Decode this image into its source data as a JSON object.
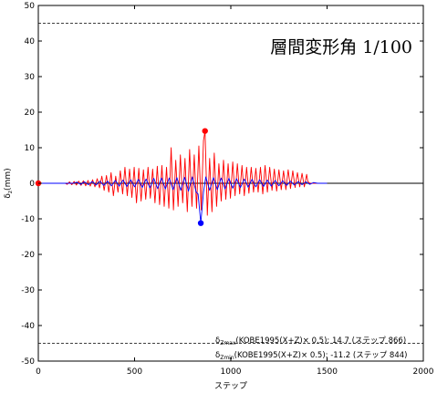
{
  "chart_data": {
    "type": "line",
    "title": "",
    "annotation": "層間変形角 1/100",
    "xlabel": "ステップ",
    "ylabel": "δz(mm)",
    "ylabel_main": "δ",
    "ylabel_sub": "z",
    "ylabel_unit": "(mm)",
    "xlim": [
      0,
      2000
    ],
    "ylim": [
      -50,
      50
    ],
    "xticks": [
      "0",
      "500",
      "1000",
      "1500",
      "2000"
    ],
    "yticks": [
      "50",
      "40",
      "30",
      "20",
      "10",
      "0",
      "-10",
      "-20",
      "-30",
      "-40",
      "-50"
    ],
    "threshold_lines": [
      45,
      -45
    ],
    "zero_line": 0,
    "series": [
      {
        "color": "#ff0000",
        "points": [
          [
            0,
            0
          ],
          [
            140,
            0
          ],
          [
            150,
            -0.3
          ],
          [
            162,
            0.4
          ],
          [
            174,
            -0.4
          ],
          [
            186,
            0.5
          ],
          [
            198,
            -0.5
          ],
          [
            210,
            0.6
          ],
          [
            222,
            -0.6
          ],
          [
            234,
            0.7
          ],
          [
            246,
            -0.7
          ],
          [
            258,
            0.8
          ],
          [
            270,
            -0.8
          ],
          [
            282,
            1.0
          ],
          [
            294,
            -1.0
          ],
          [
            306,
            1.3
          ],
          [
            318,
            -1.3
          ],
          [
            330,
            2.0
          ],
          [
            342,
            -2.0
          ],
          [
            354,
            2.2
          ],
          [
            366,
            -2.5
          ],
          [
            378,
            3.0
          ],
          [
            390,
            -3.5
          ],
          [
            402,
            2.0
          ],
          [
            414,
            -2.5
          ],
          [
            426,
            3.5
          ],
          [
            438,
            -3.0
          ],
          [
            450,
            4.5
          ],
          [
            462,
            -3.5
          ],
          [
            474,
            4.0
          ],
          [
            486,
            -4.0
          ],
          [
            498,
            4.5
          ],
          [
            510,
            -5.5
          ],
          [
            522,
            4.2
          ],
          [
            534,
            -5.0
          ],
          [
            546,
            3.8
          ],
          [
            558,
            -4.5
          ],
          [
            570,
            4.5
          ],
          [
            582,
            -4.2
          ],
          [
            594,
            4.0
          ],
          [
            606,
            -5.5
          ],
          [
            618,
            4.8
          ],
          [
            630,
            -6.0
          ],
          [
            642,
            5.0
          ],
          [
            654,
            -6.5
          ],
          [
            666,
            4.5
          ],
          [
            678,
            -7.0
          ],
          [
            690,
            10.0
          ],
          [
            702,
            -7.5
          ],
          [
            714,
            6.5
          ],
          [
            726,
            -6.5
          ],
          [
            738,
            8.0
          ],
          [
            750,
            -5.5
          ],
          [
            762,
            7.0
          ],
          [
            774,
            -8.0
          ],
          [
            786,
            9.5
          ],
          [
            798,
            -6.5
          ],
          [
            810,
            8.0
          ],
          [
            822,
            -7.0
          ],
          [
            834,
            10.5
          ],
          [
            846,
            -7.5
          ],
          [
            858,
            12.0
          ],
          [
            866,
            14.7
          ],
          [
            878,
            -9.0
          ],
          [
            890,
            7.0
          ],
          [
            902,
            -8.0
          ],
          [
            914,
            8.5
          ],
          [
            926,
            -6.5
          ],
          [
            938,
            5.5
          ],
          [
            950,
            -5.0
          ],
          [
            962,
            6.5
          ],
          [
            974,
            -4.5
          ],
          [
            986,
            5.5
          ],
          [
            998,
            -4.2
          ],
          [
            1010,
            6.0
          ],
          [
            1022,
            -3.5
          ],
          [
            1034,
            5.5
          ],
          [
            1046,
            -3.0
          ],
          [
            1058,
            5.0
          ],
          [
            1070,
            -3.5
          ],
          [
            1082,
            4.5
          ],
          [
            1094,
            -2.8
          ],
          [
            1106,
            4.5
          ],
          [
            1118,
            -2.5
          ],
          [
            1130,
            4.2
          ],
          [
            1142,
            -2.5
          ],
          [
            1154,
            4.5
          ],
          [
            1166,
            -3.0
          ],
          [
            1178,
            5.0
          ],
          [
            1190,
            -2.5
          ],
          [
            1202,
            4.5
          ],
          [
            1214,
            -2.0
          ],
          [
            1226,
            4.0
          ],
          [
            1238,
            -2.2
          ],
          [
            1250,
            3.8
          ],
          [
            1262,
            -1.8
          ],
          [
            1274,
            3.5
          ],
          [
            1286,
            -1.8
          ],
          [
            1298,
            3.8
          ],
          [
            1310,
            -1.5
          ],
          [
            1322,
            3.5
          ],
          [
            1334,
            -1.2
          ],
          [
            1346,
            3.0
          ],
          [
            1358,
            -1.0
          ],
          [
            1370,
            2.8
          ],
          [
            1382,
            -1.0
          ],
          [
            1394,
            2.5
          ],
          [
            1400,
            0.5
          ],
          [
            1410,
            0
          ],
          [
            1500,
            0
          ]
        ]
      },
      {
        "color": "#0000ff",
        "points": [
          [
            0,
            0
          ],
          [
            180,
            0
          ],
          [
            200,
            0.3
          ],
          [
            220,
            -0.3
          ],
          [
            240,
            0.4
          ],
          [
            260,
            -0.4
          ],
          [
            280,
            0.5
          ],
          [
            300,
            -0.5
          ],
          [
            320,
            0.6
          ],
          [
            340,
            -0.6
          ],
          [
            360,
            0.6
          ],
          [
            380,
            -0.7
          ],
          [
            400,
            0.8
          ],
          [
            420,
            -0.8
          ],
          [
            440,
            0.9
          ],
          [
            460,
            -0.9
          ],
          [
            480,
            1.0
          ],
          [
            500,
            -1.0
          ],
          [
            520,
            1.1
          ],
          [
            540,
            -1.2
          ],
          [
            560,
            1.2
          ],
          [
            580,
            -1.3
          ],
          [
            600,
            1.4
          ],
          [
            620,
            -1.5
          ],
          [
            640,
            1.5
          ],
          [
            660,
            -1.6
          ],
          [
            680,
            1.5
          ],
          [
            700,
            -1.8
          ],
          [
            720,
            1.6
          ],
          [
            740,
            -2.0
          ],
          [
            760,
            1.7
          ],
          [
            780,
            -2.2
          ],
          [
            800,
            1.8
          ],
          [
            820,
            -2.5
          ],
          [
            830,
            -3.0
          ],
          [
            844,
            -11.2
          ],
          [
            858,
            -2.5
          ],
          [
            870,
            1.8
          ],
          [
            890,
            -2.0
          ],
          [
            910,
            1.6
          ],
          [
            930,
            -1.8
          ],
          [
            950,
            1.5
          ],
          [
            970,
            -1.6
          ],
          [
            990,
            1.4
          ],
          [
            1010,
            -1.4
          ],
          [
            1030,
            1.3
          ],
          [
            1050,
            -1.2
          ],
          [
            1070,
            1.2
          ],
          [
            1090,
            -1.1
          ],
          [
            1110,
            1.1
          ],
          [
            1130,
            -1.0
          ],
          [
            1150,
            1.0
          ],
          [
            1170,
            -0.9
          ],
          [
            1190,
            0.9
          ],
          [
            1210,
            -0.8
          ],
          [
            1230,
            0.8
          ],
          [
            1250,
            -0.7
          ],
          [
            1270,
            0.7
          ],
          [
            1290,
            -0.6
          ],
          [
            1310,
            0.6
          ],
          [
            1330,
            -0.5
          ],
          [
            1350,
            0.5
          ],
          [
            1370,
            -0.4
          ],
          [
            1390,
            0.4
          ],
          [
            1410,
            -0.3
          ],
          [
            1430,
            0.2
          ],
          [
            1450,
            0
          ],
          [
            1500,
            0
          ]
        ]
      }
    ],
    "markers": [
      {
        "x": 0,
        "y": 0,
        "color": "#ff0000"
      },
      {
        "x": 866,
        "y": 14.7,
        "color": "#ff0000"
      },
      {
        "x": 844,
        "y": -11.2,
        "color": "#0000ff"
      }
    ],
    "legend": [
      {
        "symbol": "δ",
        "sub": "Zmax",
        "text": "(KOBE1995(X+Z)× 0.5):  14.7 (ステップ 866)"
      },
      {
        "symbol": "δ",
        "sub": "Zmin",
        "text": "(KOBE1995(X+Z)× 0.5):  -11.2 (ステップ 844)"
      }
    ]
  }
}
